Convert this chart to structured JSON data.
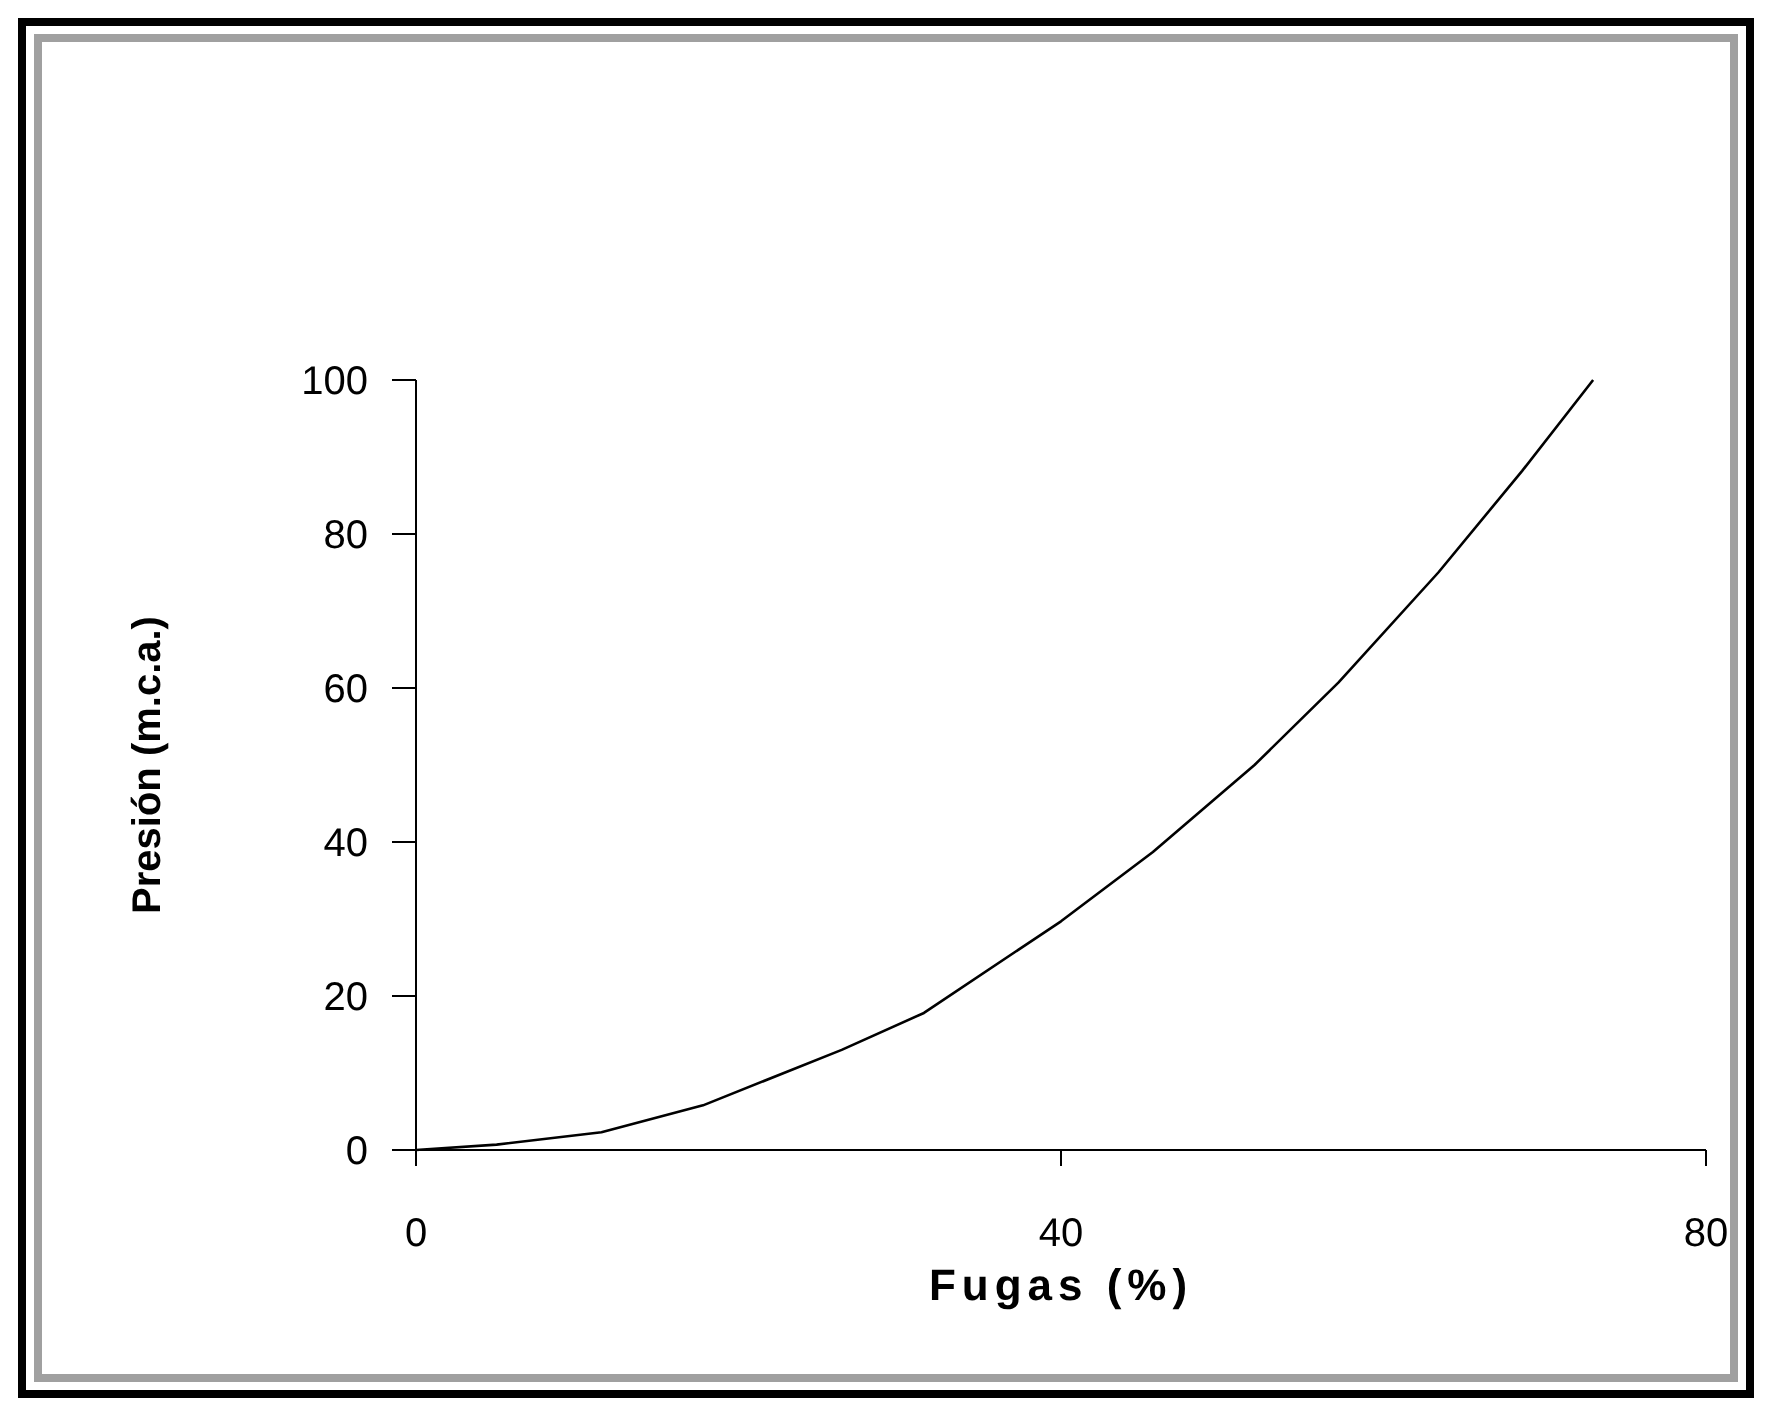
{
  "chart_data": {
    "type": "line",
    "xlabel": "Fugas (%)",
    "ylabel": "Presión (m.c.a.)",
    "x": [
      0,
      5,
      11.5,
      17.8,
      26.4,
      31.5,
      40,
      45.7,
      52,
      57.2,
      63.4,
      68.6,
      73
    ],
    "series": [
      {
        "color": "#000000",
        "values": [
          0,
          0.7,
          2.3,
          5.8,
          13,
          17.8,
          29.7,
          38.7,
          50,
          60.7,
          75,
          88.2,
          100
        ]
      }
    ],
    "xlim": [
      0,
      80
    ],
    "xticks": [
      0,
      40,
      80
    ],
    "ylim": [
      0,
      100
    ],
    "yticks": [
      0,
      20,
      40,
      60,
      80,
      100
    ],
    "marker": "none",
    "line_style": "solid"
  }
}
